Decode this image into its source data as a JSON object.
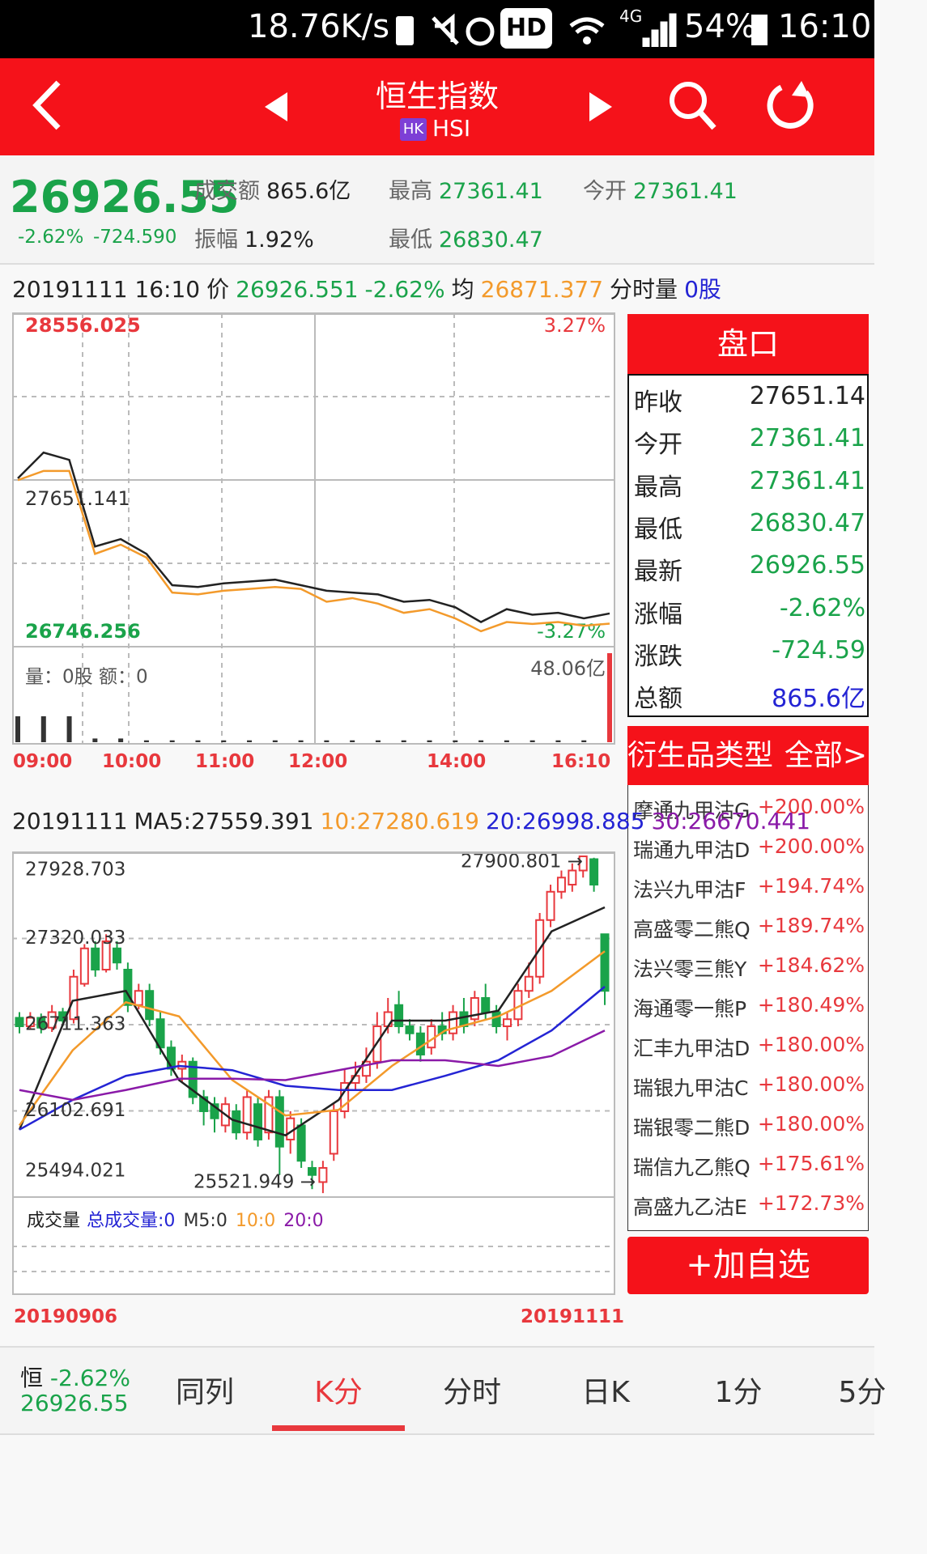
{
  "status_bar": {
    "speed": "18.76K/s",
    "hd": "HD",
    "network": "4G",
    "battery": "54%",
    "time": "16:10"
  },
  "header": {
    "title": "恒生指数",
    "market": "HK",
    "code": "HSI"
  },
  "quote": {
    "price": "26926.55",
    "change_pct": "-2.62%",
    "change": "-724.590",
    "stats": [
      {
        "label": "成交额",
        "value": "865.6亿"
      },
      {
        "label": "最高",
        "value": "27361.41"
      },
      {
        "label": "今开",
        "value": "27361.41"
      },
      {
        "label": "振幅",
        "value": "1.92%"
      },
      {
        "label": "最低",
        "value": "26830.47"
      }
    ]
  },
  "intraday_info": {
    "datetime": "20191111 16:10",
    "price_label": "价",
    "price": "26926.551",
    "change_pct": "-2.62%",
    "avg_label": "均",
    "avg": "26871.377",
    "vol_label": "分时量",
    "vol": "0股"
  },
  "intraday_chart": {
    "type": "line",
    "ylim": [
      26746.256,
      28556.025
    ],
    "yticks": [
      28556.025,
      27651.141,
      26746.256
    ],
    "y2lim": [
      -3.27,
      3.27
    ],
    "y2ticks": [
      {
        "value": 3.27,
        "label": "3.27%"
      },
      {
        "value": -3.27,
        "label": "-3.27%"
      }
    ],
    "xticks": [
      "09:00",
      "10:00",
      "11:00",
      "12:00",
      "14:00",
      "16:10"
    ],
    "series": [
      {
        "color": "#222222",
        "values": [
          27660,
          27800,
          27760,
          27290,
          27330,
          27250,
          27080,
          27070,
          27090,
          27100,
          27110,
          27080,
          27050,
          27040,
          27030,
          26990,
          27000,
          26960,
          26880,
          26950,
          26920,
          26930,
          26900,
          26926.55
        ]
      },
      {
        "color": "#f39a2b",
        "values": [
          27650,
          27700,
          27700,
          27250,
          27300,
          27230,
          27040,
          27030,
          27050,
          27060,
          27070,
          27060,
          26990,
          27010,
          26980,
          26930,
          26950,
          26900,
          26830,
          26880,
          26870,
          26880,
          26860,
          26871.377
        ]
      }
    ],
    "volume": {
      "label": "量：0股 额：0",
      "color": "#333333",
      "ylim": [
        0,
        48.06
      ],
      "ticks": [
        {
          "value": 48.06,
          "label": "48.06亿"
        }
      ],
      "values": [
        14,
        14,
        14,
        2,
        2,
        1,
        1,
        1,
        1,
        1,
        1,
        1,
        1,
        1,
        1,
        1,
        1,
        1,
        1,
        1,
        1,
        1,
        1,
        48.06
      ]
    }
  },
  "kline_info": {
    "date": "20191111"
  },
  "kline_chart": {
    "type": "candlestick",
    "ylim": [
      25494.021,
      27928.703
    ],
    "yticks": [
      27928.703,
      27320.033,
      26711.363,
      26102.691,
      25494.021
    ],
    "up_color": "#e8383d",
    "down_color": "#1aa34a",
    "xticks": [
      "20190906",
      "20191111"
    ],
    "candles": [
      [
        26760,
        26700,
        26800,
        26650
      ],
      [
        26700,
        26760,
        26800,
        26680
      ],
      [
        26760,
        26690,
        26790,
        26650
      ],
      [
        26690,
        26800,
        26850,
        26660
      ],
      [
        26800,
        26740,
        26830,
        26700
      ],
      [
        26750,
        27050,
        27100,
        26720
      ],
      [
        27000,
        27250,
        27280,
        26980
      ],
      [
        27250,
        27100,
        27300,
        27050
      ],
      [
        27100,
        27300,
        27350,
        27080
      ],
      [
        27250,
        27150,
        27300,
        27100
      ],
      [
        27100,
        26850,
        27150,
        26800
      ],
      [
        26850,
        26950,
        27000,
        26820
      ],
      [
        26950,
        26750,
        27000,
        26700
      ],
      [
        26750,
        26550,
        26800,
        26500
      ],
      [
        26550,
        26400,
        26600,
        26350
      ],
      [
        26400,
        26450,
        26500,
        26300
      ],
      [
        26450,
        26200,
        26480,
        26150
      ],
      [
        26200,
        26100,
        26250,
        26000
      ],
      [
        26150,
        26050,
        26200,
        25950
      ],
      [
        26000,
        26150,
        26200,
        25950
      ],
      [
        26100,
        25950,
        26150,
        25900
      ],
      [
        25950,
        26200,
        26250,
        25900
      ],
      [
        26150,
        25900,
        26200,
        25850
      ],
      [
        25950,
        26200,
        26250,
        25900
      ],
      [
        26200,
        25850,
        26250,
        25650
      ],
      [
        25900,
        26050,
        26100,
        25800
      ],
      [
        26000,
        25750,
        26050,
        25700
      ],
      [
        25700,
        25650,
        25750,
        25550
      ],
      [
        25600,
        25700,
        25750,
        25521.949
      ],
      [
        25800,
        26100,
        26150,
        25750
      ],
      [
        26100,
        26300,
        26400,
        26050
      ],
      [
        26300,
        26350,
        26450,
        26250
      ],
      [
        26350,
        26450,
        26550,
        26300
      ],
      [
        26450,
        26700,
        26800,
        26400
      ],
      [
        26700,
        26800,
        26900,
        26650
      ],
      [
        26850,
        26700,
        26950,
        26650
      ],
      [
        26700,
        26650,
        26750,
        26600
      ],
      [
        26650,
        26500,
        26700,
        26450
      ],
      [
        26550,
        26700,
        26750,
        26500
      ],
      [
        26700,
        26650,
        26800,
        26600
      ],
      [
        26650,
        26800,
        26850,
        26600
      ],
      [
        26800,
        26700,
        26900,
        26650
      ],
      [
        26750,
        26900,
        26950,
        26700
      ],
      [
        26900,
        26800,
        27000,
        26750
      ],
      [
        26800,
        26700,
        26850,
        26650
      ],
      [
        26700,
        26750,
        26800,
        26600
      ],
      [
        26750,
        26950,
        27000,
        26700
      ],
      [
        26950,
        27050,
        27150,
        26900
      ],
      [
        27050,
        27450,
        27500,
        27000
      ],
      [
        27450,
        27650,
        27700,
        27400
      ],
      [
        27650,
        27750,
        27800,
        27600
      ],
      [
        27700,
        27800,
        27850,
        27650
      ],
      [
        27800,
        27900,
        27900.801,
        27750
      ],
      [
        27880,
        27700,
        27890,
        27650
      ],
      [
        27350,
        26950,
        27350,
        26850
      ]
    ],
    "series": [
      {
        "name": "MA5:27559.391",
        "color": "#222222",
        "values": [
          25970,
          26880,
          26950,
          26320,
          26040,
          25930,
          26180,
          26740,
          26740,
          26810,
          27370,
          27540
        ]
      },
      {
        "name": "10:27280.619",
        "color": "#f39a2b",
        "values": [
          26000,
          26530,
          26870,
          26770,
          26320,
          26070,
          26110,
          26420,
          26670,
          26770,
          26950,
          27230
        ]
      },
      {
        "name": "20:26998.885",
        "color": "#2424d4",
        "values": [
          25970,
          26180,
          26350,
          26420,
          26390,
          26280,
          26250,
          26250,
          26350,
          26460,
          26670,
          26980
        ]
      },
      {
        "name": "30:26670.441",
        "color": "#8a1aa8",
        "values": [
          26250,
          26180,
          26250,
          26330,
          26330,
          26320,
          26390,
          26460,
          26460,
          26420,
          26490,
          26670
        ]
      }
    ],
    "annotations": [
      {
        "text": "27900.801 →"
      },
      {
        "text": "25521.949 →"
      }
    ],
    "volume": {
      "label": "成交量",
      "items": [
        {
          "text": "总成交量:0",
          "color": "#2424d4"
        },
        {
          "text": "M5:0",
          "color": "#333333"
        },
        {
          "text": "10:0",
          "color": "#f39a2b"
        },
        {
          "text": "20:0",
          "color": "#8a1aa8"
        }
      ]
    }
  },
  "order_panel": {
    "title": "盘口",
    "rows": [
      {
        "label": "昨收",
        "value": "27651.14"
      },
      {
        "label": "今开",
        "value": "27361.41"
      },
      {
        "label": "最高",
        "value": "27361.41"
      },
      {
        "label": "最低",
        "value": "26830.47"
      },
      {
        "label": "最新",
        "value": "26926.55"
      },
      {
        "label": "涨幅",
        "value": "-2.62%"
      },
      {
        "label": "涨跌",
        "value": "-724.59"
      },
      {
        "label": "总额",
        "value": "865.6亿"
      }
    ]
  },
  "derivatives": {
    "title": "衍生品类型",
    "filter": "全部>",
    "items": [
      {
        "name": "摩通九甲沽G",
        "change": "+200.00%"
      },
      {
        "name": "瑞通九甲沽D",
        "change": "+200.00%"
      },
      {
        "name": "法兴九甲沽F",
        "change": "+194.74%"
      },
      {
        "name": "高盛零二熊Q",
        "change": "+189.74%"
      },
      {
        "name": "法兴零三熊Y",
        "change": "+184.62%"
      },
      {
        "name": "海通零一熊P",
        "change": "+180.49%"
      },
      {
        "name": "汇丰九甲沽D",
        "change": "+180.00%"
      },
      {
        "name": "瑞银九甲沽C",
        "change": "+180.00%"
      },
      {
        "name": "瑞银零二熊D",
        "change": "+180.00%"
      },
      {
        "name": "瑞信九乙熊Q",
        "change": "+175.61%"
      },
      {
        "name": "高盛九乙沽E",
        "change": "+172.73%"
      }
    ]
  },
  "add_button": "+加自选",
  "bottom_bar": {
    "summary_label": "恒",
    "summary_pct": "-2.62%",
    "summary_price": "26926.55",
    "tabs": [
      "同列",
      "K分",
      "分时",
      "日K",
      "1分",
      "5分"
    ]
  }
}
